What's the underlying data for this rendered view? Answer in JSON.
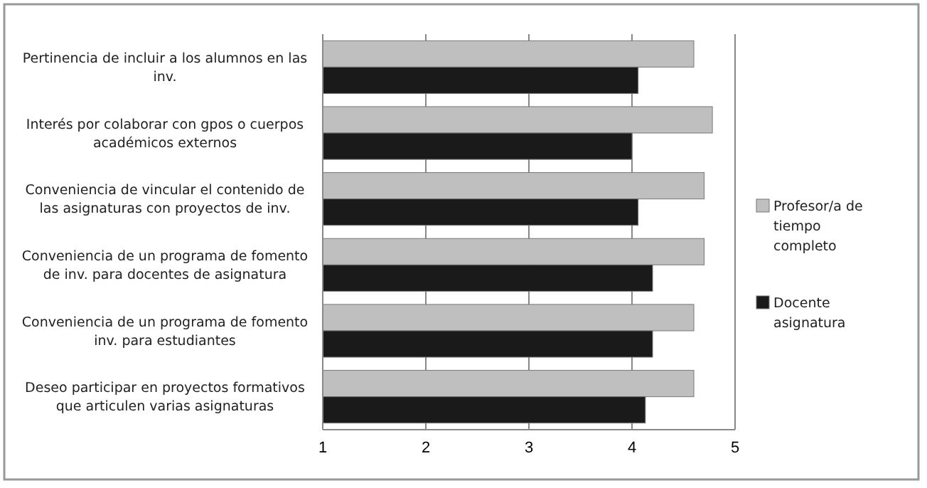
{
  "chart_data": {
    "type": "bar",
    "orientation": "horizontal",
    "categories": [
      "Pertinencia de incluir a los alumnos en las inv.",
      "Interés por colaborar con gpos o cuerpos académicos externos",
      "Conveniencia de vincular el contenido de las asignaturas con proyectos de inv.",
      "Conveniencia de un programa de fomento de inv. para docentes de asignatura",
      "Conveniencia de un programa de fomento inv. para estudiantes",
      "Deseo participar en proyectos formativos que articulen varias asignaturas"
    ],
    "series": [
      {
        "name": "Profesor/a de tiempo completo",
        "color": "#bfbfbf",
        "values": [
          4.6,
          4.78,
          4.7,
          4.7,
          4.6,
          4.6
        ]
      },
      {
        "name": "Docente asignatura",
        "color": "#1a1a1a",
        "values": [
          4.06,
          4.0,
          4.06,
          4.2,
          4.2,
          4.13
        ]
      }
    ],
    "xlim": [
      1,
      5
    ],
    "xticks": [
      1,
      2,
      3,
      4,
      5
    ],
    "grid": "x",
    "legend": "right"
  }
}
